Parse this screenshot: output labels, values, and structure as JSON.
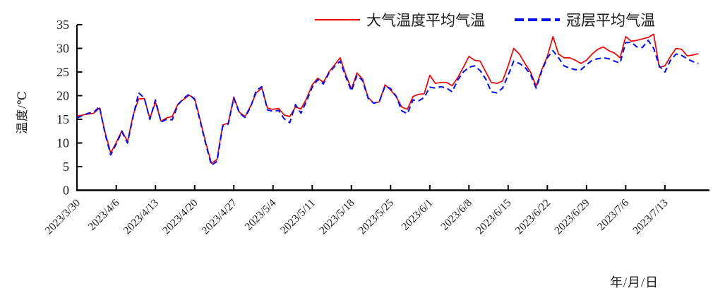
{
  "chart_data": {
    "type": "line",
    "title": "",
    "xlabel": "年/月/日",
    "ylabel": "温度/℃",
    "ylim": [
      0,
      35
    ],
    "yticks": [
      0,
      5,
      10,
      15,
      20,
      25,
      30,
      35
    ],
    "grid": false,
    "legend_position": "top-center",
    "x_tick_interval_days": 7,
    "x_tick_labels": [
      "2023/3/30",
      "2023/4/6",
      "2023/4/13",
      "2023/4/20",
      "2023/4/27",
      "2023/5/4",
      "2023/5/11",
      "2023/5/18",
      "2023/5/25",
      "2023/6/1",
      "2023/6/8",
      "2023/6/15",
      "2023/6/22",
      "2023/6/29",
      "2023/7/6",
      "2023/7/13"
    ],
    "dates": [
      "2023/3/30",
      "2023/3/31",
      "2023/4/1",
      "2023/4/2",
      "2023/4/3",
      "2023/4/4",
      "2023/4/5",
      "2023/4/6",
      "2023/4/7",
      "2023/4/8",
      "2023/4/9",
      "2023/4/10",
      "2023/4/11",
      "2023/4/12",
      "2023/4/13",
      "2023/4/14",
      "2023/4/15",
      "2023/4/16",
      "2023/4/17",
      "2023/4/18",
      "2023/4/19",
      "2023/4/20",
      "2023/4/21",
      "2023/4/22",
      "2023/4/23",
      "2023/4/24",
      "2023/4/25",
      "2023/4/26",
      "2023/4/27",
      "2023/4/28",
      "2023/4/29",
      "2023/4/30",
      "2023/5/1",
      "2023/5/2",
      "2023/5/3",
      "2023/5/4",
      "2023/5/5",
      "2023/5/6",
      "2023/5/7",
      "2023/5/8",
      "2023/5/9",
      "2023/5/10",
      "2023/5/11",
      "2023/5/12",
      "2023/5/13",
      "2023/5/14",
      "2023/5/15",
      "2023/5/16",
      "2023/5/17",
      "2023/5/18",
      "2023/5/19",
      "2023/5/20",
      "2023/5/21",
      "2023/5/22",
      "2023/5/23",
      "2023/5/24",
      "2023/5/25",
      "2023/5/26",
      "2023/5/27",
      "2023/5/28",
      "2023/5/29",
      "2023/5/30",
      "2023/5/31",
      "2023/6/1",
      "2023/6/2",
      "2023/6/3",
      "2023/6/4",
      "2023/6/5",
      "2023/6/6",
      "2023/6/7",
      "2023/6/8",
      "2023/6/9",
      "2023/6/10",
      "2023/6/11",
      "2023/6/12",
      "2023/6/13",
      "2023/6/14",
      "2023/6/15",
      "2023/6/16",
      "2023/6/17",
      "2023/6/18",
      "2023/6/19",
      "2023/6/20",
      "2023/6/21",
      "2023/6/22",
      "2023/6/23",
      "2023/6/24",
      "2023/6/25",
      "2023/6/26",
      "2023/6/27",
      "2023/6/28",
      "2023/6/29",
      "2023/6/30",
      "2023/7/1",
      "2023/7/2",
      "2023/7/3",
      "2023/7/4",
      "2023/7/5",
      "2023/7/6",
      "2023/7/7",
      "2023/7/8",
      "2023/7/9",
      "2023/7/10",
      "2023/7/11",
      "2023/7/12",
      "2023/7/13",
      "2023/7/14",
      "2023/7/15",
      "2023/7/16",
      "2023/7/17",
      "2023/7/18",
      "2023/7/19"
    ],
    "series": [
      {
        "name": "大气温度平均气温",
        "color": "#ee0000",
        "style": "solid",
        "values": [
          15.7,
          15.9,
          16.1,
          16.3,
          17.4,
          12.3,
          7.9,
          10.1,
          12.6,
          10.3,
          15.8,
          19.3,
          19.4,
          15.2,
          18.6,
          14.6,
          15.3,
          15.6,
          18.2,
          19.2,
          20.1,
          19.4,
          14.8,
          10.0,
          5.7,
          6.5,
          13.8,
          14.2,
          19.7,
          16.5,
          15.6,
          17.8,
          20.6,
          21.6,
          17.4,
          17.1,
          17.3,
          15.9,
          15.6,
          17.6,
          17.2,
          19.4,
          22.3,
          23.7,
          22.8,
          25.0,
          26.5,
          28.0,
          24.4,
          21.4,
          24.8,
          23.5,
          19.6,
          18.4,
          18.7,
          22.3,
          21.2,
          19.8,
          17.6,
          17.1,
          19.8,
          20.3,
          20.4,
          24.3,
          22.6,
          22.8,
          22.8,
          22.1,
          23.8,
          26.0,
          28.3,
          27.5,
          27.3,
          25.0,
          22.8,
          22.6,
          23.1,
          26.3,
          30.0,
          28.8,
          26.8,
          25.0,
          22.0,
          25.5,
          28.3,
          32.5,
          28.8,
          28.0,
          28.0,
          27.5,
          26.8,
          27.5,
          28.8,
          29.8,
          30.3,
          29.5,
          29.0,
          28.0,
          32.5,
          31.5,
          31.7,
          32.0,
          32.3,
          33.0,
          26.0,
          26.3,
          28.3,
          30.0,
          29.8,
          28.4,
          28.6,
          28.9
        ]
      },
      {
        "name": "冠层平均气温",
        "color": "#0611f0",
        "style": "dashed",
        "values": [
          15.3,
          15.8,
          16.3,
          16.5,
          17.7,
          12.0,
          7.5,
          9.8,
          12.4,
          10.0,
          15.5,
          20.6,
          19.5,
          15.0,
          19.1,
          14.4,
          15.0,
          14.9,
          18.0,
          19.4,
          20.3,
          19.2,
          14.5,
          9.7,
          5.3,
          6.1,
          13.5,
          14.0,
          19.5,
          16.3,
          15.4,
          17.6,
          21.1,
          21.9,
          17.0,
          16.7,
          16.9,
          15.1,
          14.3,
          18.1,
          16.3,
          18.9,
          21.8,
          23.4,
          22.5,
          24.8,
          26.2,
          27.3,
          24.0,
          21.0,
          24.3,
          23.2,
          19.4,
          18.4,
          18.8,
          22.0,
          21.5,
          19.9,
          16.8,
          16.2,
          19.1,
          18.9,
          19.6,
          21.8,
          21.6,
          21.9,
          21.6,
          20.8,
          23.3,
          25.0,
          26.0,
          26.3,
          25.3,
          23.5,
          20.8,
          20.6,
          21.6,
          24.3,
          27.3,
          26.8,
          26.0,
          24.5,
          21.6,
          25.2,
          28.0,
          29.5,
          28.0,
          26.3,
          25.8,
          25.5,
          25.5,
          26.5,
          27.5,
          27.8,
          28.0,
          27.8,
          27.3,
          26.9,
          31.2,
          31.3,
          30.3,
          30.2,
          31.7,
          30.0,
          26.3,
          25.0,
          27.5,
          28.8,
          28.5,
          27.8,
          27.2,
          26.8
        ]
      }
    ],
    "axis_color": "#000000",
    "text_color": "#1b1b22"
  },
  "legend": {
    "series1_label": "大气温度平均气温",
    "series2_label": "冠层平均气温"
  },
  "axes": {
    "y_title": "温度/℃",
    "x_title": "年/月/日"
  }
}
